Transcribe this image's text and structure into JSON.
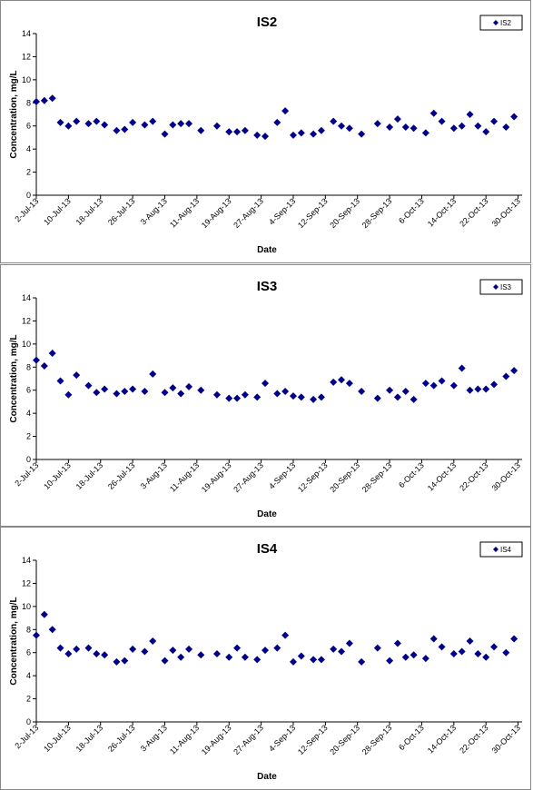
{
  "marker_color": "#00008B",
  "x_ticks": [
    "2-Jul-13",
    "10-Jul-13",
    "18-Jul-13",
    "26-Jul-13",
    "3-Aug-13",
    "11-Aug-13",
    "19-Aug-13",
    "27-Aug-13",
    "4-Sep-13",
    "12-Sep-13",
    "20-Sep-13",
    "28-Sep-13",
    "6-Oct-13",
    "14-Oct-13",
    "22-Oct-13",
    "30-Oct-13"
  ],
  "chart_data": [
    {
      "type": "scatter",
      "title": "IS2",
      "xlabel": "Date",
      "ylabel": "Concentration, mg/L",
      "xlim": [
        "2013-07-02",
        "2013-10-31"
      ],
      "ylim": [
        0,
        14
      ],
      "yticks": [
        0,
        2,
        4,
        6,
        8,
        10,
        12,
        14
      ],
      "grid": false,
      "legend": "top-right",
      "series": [
        {
          "name": "IS2",
          "points": [
            [
              "2013-07-02",
              8.1
            ],
            [
              "2013-07-04",
              8.2
            ],
            [
              "2013-07-06",
              8.4
            ],
            [
              "2013-07-08",
              6.3
            ],
            [
              "2013-07-10",
              6.0
            ],
            [
              "2013-07-12",
              6.4
            ],
            [
              "2013-07-15",
              6.2
            ],
            [
              "2013-07-17",
              6.4
            ],
            [
              "2013-07-19",
              6.1
            ],
            [
              "2013-07-22",
              5.6
            ],
            [
              "2013-07-24",
              5.7
            ],
            [
              "2013-07-26",
              6.3
            ],
            [
              "2013-07-29",
              6.1
            ],
            [
              "2013-07-31",
              6.4
            ],
            [
              "2013-08-03",
              5.3
            ],
            [
              "2013-08-05",
              6.1
            ],
            [
              "2013-08-07",
              6.2
            ],
            [
              "2013-08-09",
              6.2
            ],
            [
              "2013-08-12",
              5.6
            ],
            [
              "2013-08-16",
              6.0
            ],
            [
              "2013-08-19",
              5.5
            ],
            [
              "2013-08-21",
              5.5
            ],
            [
              "2013-08-23",
              5.6
            ],
            [
              "2013-08-26",
              5.2
            ],
            [
              "2013-08-28",
              5.1
            ],
            [
              "2013-08-31",
              6.3
            ],
            [
              "2013-09-02",
              7.3
            ],
            [
              "2013-09-04",
              5.2
            ],
            [
              "2013-09-06",
              5.4
            ],
            [
              "2013-09-09",
              5.3
            ],
            [
              "2013-09-11",
              5.6
            ],
            [
              "2013-09-14",
              6.4
            ],
            [
              "2013-09-16",
              6.0
            ],
            [
              "2013-09-18",
              5.8
            ],
            [
              "2013-09-21",
              5.3
            ],
            [
              "2013-09-25",
              6.2
            ],
            [
              "2013-09-28",
              5.9
            ],
            [
              "2013-09-30",
              6.6
            ],
            [
              "2013-10-02",
              5.9
            ],
            [
              "2013-10-04",
              5.8
            ],
            [
              "2013-10-07",
              5.4
            ],
            [
              "2013-10-09",
              7.1
            ],
            [
              "2013-10-11",
              6.4
            ],
            [
              "2013-10-14",
              5.8
            ],
            [
              "2013-10-16",
              6.0
            ],
            [
              "2013-10-18",
              7.0
            ],
            [
              "2013-10-20",
              6.0
            ],
            [
              "2013-10-22",
              5.5
            ],
            [
              "2013-10-24",
              6.4
            ],
            [
              "2013-10-27",
              5.9
            ],
            [
              "2013-10-29",
              6.8
            ]
          ]
        }
      ]
    },
    {
      "type": "scatter",
      "title": "IS3",
      "xlabel": "Date",
      "ylabel": "Concentration, mg/L",
      "xlim": [
        "2013-07-02",
        "2013-10-31"
      ],
      "ylim": [
        0,
        14
      ],
      "yticks": [
        0,
        2,
        4,
        6,
        8,
        10,
        12,
        14
      ],
      "grid": false,
      "legend": "top-right",
      "series": [
        {
          "name": "IS3",
          "points": [
            [
              "2013-07-02",
              8.6
            ],
            [
              "2013-07-04",
              8.1
            ],
            [
              "2013-07-06",
              9.2
            ],
            [
              "2013-07-08",
              6.8
            ],
            [
              "2013-07-10",
              5.6
            ],
            [
              "2013-07-12",
              7.3
            ],
            [
              "2013-07-15",
              6.4
            ],
            [
              "2013-07-17",
              5.8
            ],
            [
              "2013-07-19",
              6.1
            ],
            [
              "2013-07-22",
              5.7
            ],
            [
              "2013-07-24",
              5.9
            ],
            [
              "2013-07-26",
              6.1
            ],
            [
              "2013-07-29",
              5.9
            ],
            [
              "2013-07-31",
              7.4
            ],
            [
              "2013-08-03",
              5.8
            ],
            [
              "2013-08-05",
              6.2
            ],
            [
              "2013-08-07",
              5.7
            ],
            [
              "2013-08-09",
              6.3
            ],
            [
              "2013-08-12",
              6.0
            ],
            [
              "2013-08-16",
              5.6
            ],
            [
              "2013-08-19",
              5.3
            ],
            [
              "2013-08-21",
              5.3
            ],
            [
              "2013-08-23",
              5.6
            ],
            [
              "2013-08-26",
              5.4
            ],
            [
              "2013-08-28",
              6.6
            ],
            [
              "2013-08-31",
              5.7
            ],
            [
              "2013-09-02",
              5.9
            ],
            [
              "2013-09-04",
              5.5
            ],
            [
              "2013-09-06",
              5.4
            ],
            [
              "2013-09-09",
              5.2
            ],
            [
              "2013-09-11",
              5.4
            ],
            [
              "2013-09-14",
              6.7
            ],
            [
              "2013-09-16",
              6.9
            ],
            [
              "2013-09-18",
              6.6
            ],
            [
              "2013-09-21",
              5.9
            ],
            [
              "2013-09-25",
              5.3
            ],
            [
              "2013-09-28",
              6.0
            ],
            [
              "2013-09-30",
              5.4
            ],
            [
              "2013-10-02",
              5.9
            ],
            [
              "2013-10-04",
              5.2
            ],
            [
              "2013-10-07",
              6.6
            ],
            [
              "2013-10-09",
              6.4
            ],
            [
              "2013-10-11",
              6.8
            ],
            [
              "2013-10-14",
              6.4
            ],
            [
              "2013-10-16",
              7.9
            ],
            [
              "2013-10-18",
              6.0
            ],
            [
              "2013-10-20",
              6.1
            ],
            [
              "2013-10-22",
              6.1
            ],
            [
              "2013-10-24",
              6.5
            ],
            [
              "2013-10-27",
              7.2
            ],
            [
              "2013-10-29",
              7.7
            ]
          ]
        }
      ]
    },
    {
      "type": "scatter",
      "title": "IS4",
      "xlabel": "Date",
      "ylabel": "Concentration, mg/L",
      "xlim": [
        "2013-07-02",
        "2013-10-31"
      ],
      "ylim": [
        0,
        14
      ],
      "yticks": [
        0,
        2,
        4,
        6,
        8,
        10,
        12,
        14
      ],
      "grid": false,
      "legend": "top-right",
      "series": [
        {
          "name": "IS4",
          "points": [
            [
              "2013-07-02",
              7.5
            ],
            [
              "2013-07-04",
              9.3
            ],
            [
              "2013-07-06",
              8.0
            ],
            [
              "2013-07-08",
              6.4
            ],
            [
              "2013-07-10",
              5.9
            ],
            [
              "2013-07-12",
              6.3
            ],
            [
              "2013-07-15",
              6.4
            ],
            [
              "2013-07-17",
              5.9
            ],
            [
              "2013-07-19",
              5.8
            ],
            [
              "2013-07-22",
              5.2
            ],
            [
              "2013-07-24",
              5.3
            ],
            [
              "2013-07-26",
              6.3
            ],
            [
              "2013-07-29",
              6.1
            ],
            [
              "2013-07-31",
              7.0
            ],
            [
              "2013-08-03",
              5.3
            ],
            [
              "2013-08-05",
              6.2
            ],
            [
              "2013-08-07",
              5.6
            ],
            [
              "2013-08-09",
              6.3
            ],
            [
              "2013-08-12",
              5.8
            ],
            [
              "2013-08-16",
              5.9
            ],
            [
              "2013-08-19",
              5.6
            ],
            [
              "2013-08-21",
              6.4
            ],
            [
              "2013-08-23",
              5.6
            ],
            [
              "2013-08-26",
              5.4
            ],
            [
              "2013-08-28",
              6.2
            ],
            [
              "2013-08-31",
              6.4
            ],
            [
              "2013-09-02",
              7.5
            ],
            [
              "2013-09-04",
              5.2
            ],
            [
              "2013-09-06",
              5.7
            ],
            [
              "2013-09-09",
              5.4
            ],
            [
              "2013-09-11",
              5.4
            ],
            [
              "2013-09-14",
              6.3
            ],
            [
              "2013-09-16",
              6.1
            ],
            [
              "2013-09-18",
              6.8
            ],
            [
              "2013-09-21",
              5.2
            ],
            [
              "2013-09-25",
              6.4
            ],
            [
              "2013-09-28",
              5.3
            ],
            [
              "2013-09-30",
              6.8
            ],
            [
              "2013-10-02",
              5.6
            ],
            [
              "2013-10-04",
              5.8
            ],
            [
              "2013-10-07",
              5.5
            ],
            [
              "2013-10-09",
              7.2
            ],
            [
              "2013-10-11",
              6.5
            ],
            [
              "2013-10-14",
              5.9
            ],
            [
              "2013-10-16",
              6.1
            ],
            [
              "2013-10-18",
              7.0
            ],
            [
              "2013-10-20",
              5.9
            ],
            [
              "2013-10-22",
              5.6
            ],
            [
              "2013-10-24",
              6.5
            ],
            [
              "2013-10-27",
              6.0
            ],
            [
              "2013-10-29",
              7.2
            ]
          ]
        }
      ]
    }
  ]
}
